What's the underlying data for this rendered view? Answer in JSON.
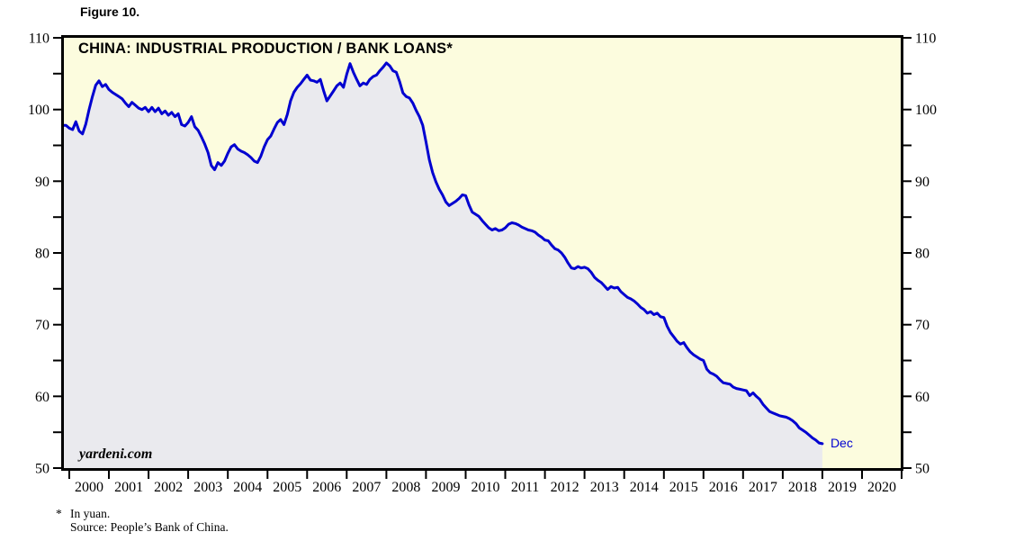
{
  "figure_label": "Figure 10.",
  "title": "CHINA: INDUSTRIAL PRODUCTION / BANK LOANS*",
  "watermark": "yardeni.com",
  "end_label": "Dec",
  "footnote": {
    "marker": "*",
    "line1": "In yuan.",
    "line2": "Source: People’s Bank of China."
  },
  "colors": {
    "line": "#0000D0",
    "fill_under_line": "#EAEAEE",
    "plot_background": "#FCFCDE",
    "frame": "#000000",
    "end_label": "#0000D0"
  },
  "chart_data": {
    "type": "line",
    "title": "CHINA: INDUSTRIAL PRODUCTION / BANK LOANS*",
    "xlabel": "",
    "ylabel": "",
    "ylim": [
      50,
      110
    ],
    "y_ticks": [
      50,
      60,
      70,
      80,
      90,
      100,
      110
    ],
    "y_minor_ticks": [
      55,
      65,
      75,
      85,
      95,
      105
    ],
    "x_tick_years": [
      2000,
      2001,
      2002,
      2003,
      2004,
      2005,
      2006,
      2007,
      2008,
      2009,
      2010,
      2011,
      2012,
      2013,
      2014,
      2015,
      2016,
      2017,
      2018,
      2019,
      2020
    ],
    "grid": false,
    "legend_position": "none",
    "series": [
      {
        "name": "China industrial production / bank loans (in yuan)",
        "start": "1999-11",
        "frequency": "monthly",
        "end_point_label": "Dec",
        "values": [
          97.8,
          97.4,
          97.2,
          98.3,
          97.0,
          96.6,
          98.0,
          100.0,
          101.8,
          103.4,
          104.0,
          103.2,
          103.5,
          102.8,
          102.4,
          102.1,
          101.8,
          101.5,
          100.9,
          100.4,
          101.0,
          100.6,
          100.2,
          100.0,
          100.3,
          99.7,
          100.3,
          99.7,
          100.2,
          99.4,
          99.8,
          99.2,
          99.6,
          99.0,
          99.4,
          97.9,
          97.7,
          98.2,
          99.0,
          97.6,
          97.1,
          96.2,
          95.2,
          94.0,
          92.2,
          91.6,
          92.6,
          92.2,
          92.8,
          93.9,
          94.8,
          95.1,
          94.5,
          94.2,
          94.0,
          93.7,
          93.3,
          92.8,
          92.6,
          93.5,
          94.8,
          95.8,
          96.3,
          97.3,
          98.2,
          98.6,
          97.9,
          99.3,
          101.2,
          102.4,
          103.1,
          103.6,
          104.2,
          104.8,
          104.1,
          104.0,
          103.8,
          104.2,
          102.6,
          101.2,
          101.9,
          102.6,
          103.3,
          103.7,
          103.1,
          104.9,
          106.4,
          105.2,
          104.2,
          103.3,
          103.7,
          103.5,
          104.2,
          104.6,
          104.8,
          105.4,
          105.9,
          106.5,
          106.1,
          105.4,
          105.2,
          103.9,
          102.3,
          101.8,
          101.6,
          100.9,
          99.9,
          99.0,
          97.8,
          95.5,
          93.0,
          91.2,
          89.9,
          88.9,
          88.1,
          87.1,
          86.6,
          86.9,
          87.2,
          87.6,
          88.1,
          88.0,
          86.7,
          85.7,
          85.4,
          85.1,
          84.5,
          84.0,
          83.5,
          83.2,
          83.4,
          83.1,
          83.2,
          83.5,
          84.0,
          84.2,
          84.1,
          83.9,
          83.6,
          83.4,
          83.2,
          83.1,
          82.9,
          82.5,
          82.2,
          81.8,
          81.7,
          81.1,
          80.6,
          80.4,
          80.0,
          79.4,
          78.6,
          77.9,
          77.8,
          78.1,
          77.9,
          78.0,
          77.8,
          77.3,
          76.6,
          76.2,
          75.9,
          75.4,
          74.9,
          75.3,
          75.1,
          75.2,
          74.6,
          74.2,
          73.8,
          73.6,
          73.3,
          72.9,
          72.4,
          72.1,
          71.6,
          71.8,
          71.4,
          71.6,
          71.1,
          71.0,
          69.8,
          68.9,
          68.3,
          67.7,
          67.3,
          67.5,
          66.8,
          66.2,
          65.8,
          65.5,
          65.2,
          65.0,
          63.8,
          63.3,
          63.1,
          62.8,
          62.3,
          61.9,
          61.8,
          61.7,
          61.3,
          61.1,
          61.0,
          60.9,
          60.8,
          60.1,
          60.5,
          60.0,
          59.6,
          58.9,
          58.4,
          57.9,
          57.7,
          57.5,
          57.3,
          57.2,
          57.1,
          56.9,
          56.6,
          56.2,
          55.6,
          55.3,
          55.0,
          54.6,
          54.2,
          53.9,
          53.5,
          53.4
        ]
      }
    ]
  }
}
